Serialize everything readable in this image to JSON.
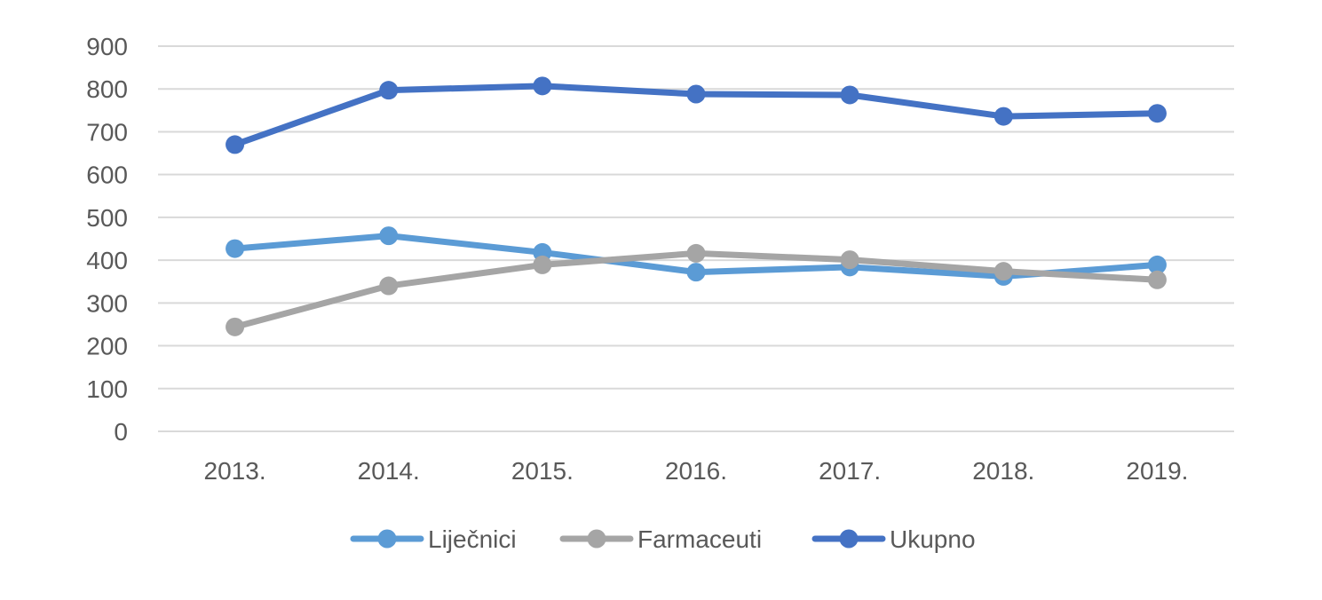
{
  "chart_data": {
    "type": "line",
    "categories": [
      "2013.",
      "2014.",
      "2015.",
      "2016.",
      "2017.",
      "2018.",
      "2019."
    ],
    "ylim": [
      0,
      900
    ],
    "yticks": [
      0,
      100,
      200,
      300,
      400,
      500,
      600,
      700,
      800,
      900
    ],
    "grid": true,
    "legend_position": "bottom",
    "series": [
      {
        "name": "Liječnici",
        "color": "#5B9BD5",
        "values": [
          427,
          457,
          418,
          372,
          384,
          362,
          389
        ]
      },
      {
        "name": "Farmaceuti",
        "color": "#A5A5A5",
        "values": [
          244,
          340,
          389,
          416,
          401,
          374,
          354
        ]
      },
      {
        "name": "Ukupno",
        "color": "#4472C4",
        "values": [
          670,
          797,
          807,
          788,
          786,
          736,
          743
        ]
      }
    ]
  }
}
